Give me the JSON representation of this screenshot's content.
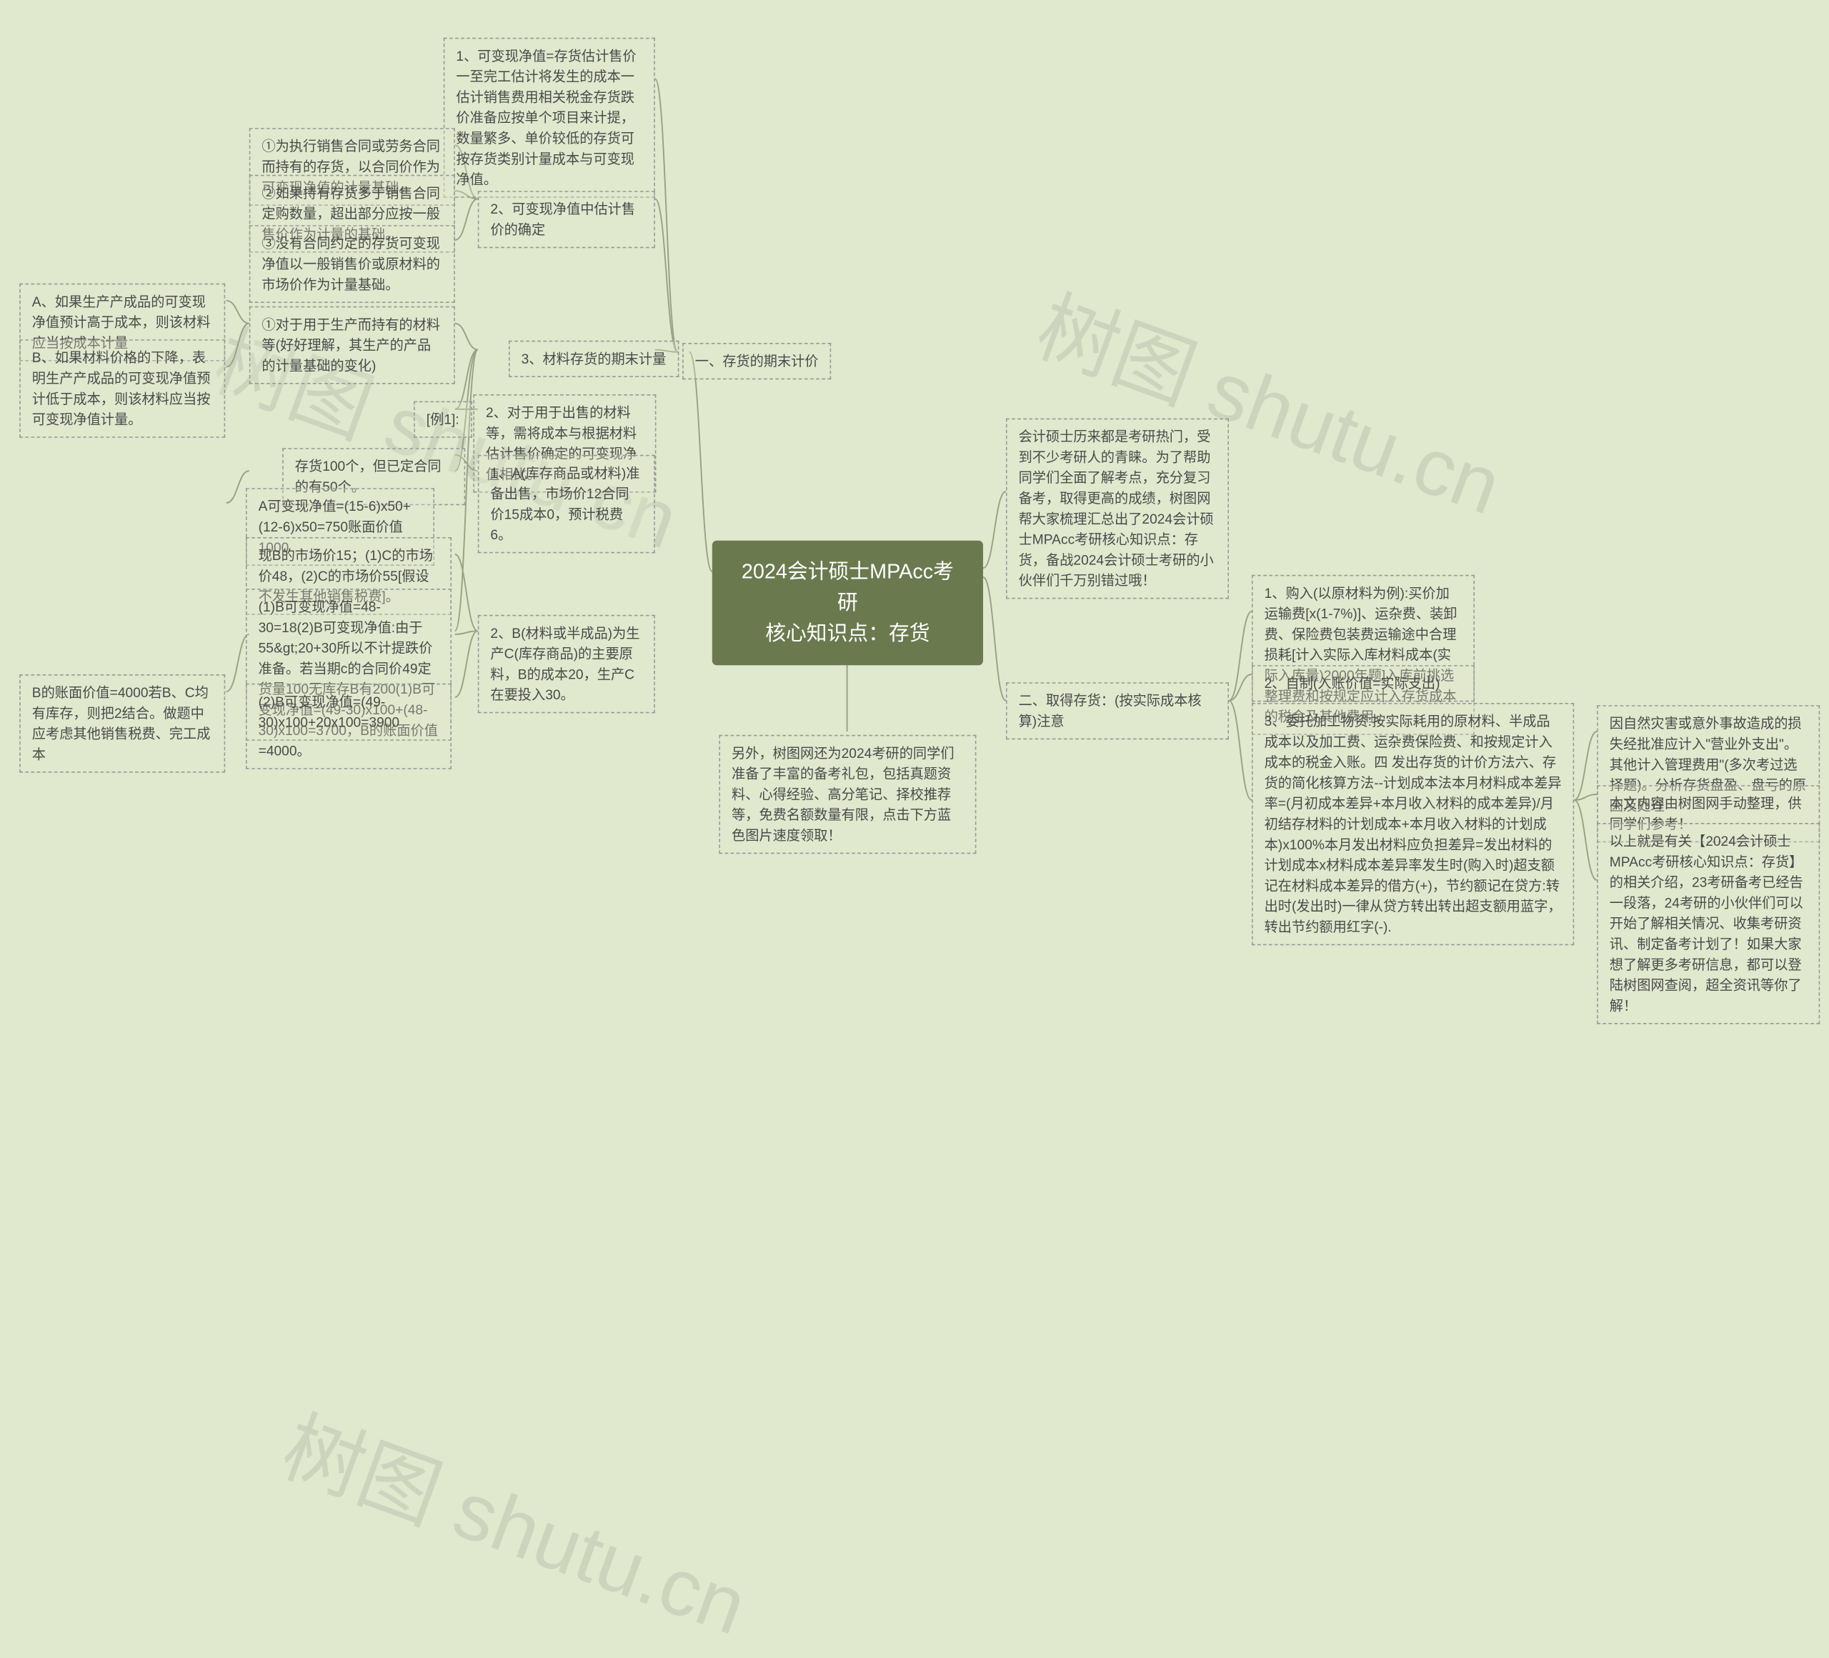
{
  "center": {
    "line1": "2024会计硕士MPAcc考研",
    "line2": "核心知识点：存货"
  },
  "right": {
    "intro": "会计硕士历来都是考研热门，受到不少考研人的青睐。为了帮助同学们全面了解考点，充分复习备考，取得更高的成绩，树图网帮大家梳理汇总出了2024会计硕士MPAcc考研核心知识点：存货，备战2024会计硕士考研的小伙伴们千万别错过哦！",
    "sec2title": "二、取得存货：(按实际成本核算)注意",
    "r1": "1、购入(以原材料为例):买价加运输费[x(1-7%)]、运杂费、装卸费、保险费包装费运输途中合理损耗[计入实际入库材料成本(实际入库量)2000年题]入库前挑选整理费和按规定应计入存货成本的税金及其他费用。",
    "r2": "2、自制(入账价值=实际支出)",
    "r3": "3、委托加工物资:按实际耗用的原材料、半成品成本以及加工费、运杂费保险费、和按规定计入成本的税金入账。四 发出存货的计价方法六、存货的简化核算方法--计划成本法本月材料成本差异率=(月初成本差异+本月收入材料的成本差异)/月初结存材料的计划成本+本月收入材料的计划成本)x100%本月发出材料应负担差异=发出材料的计划成本x材料成本差异率发生时(购入时)超支额记在材料成本差异的借方(+)，节约额记在贷方:转出时(发出时)一律从贷方转出转出超支额用蓝字，转出节约额用红字(-).",
    "r3a": "因自然灾害或意外事故造成的损失经批准应计入\"营业外支出\"。其他计入管理费用\"(多次考过选择题)。分析存货盘盈、盘亏的原因及处理",
    "r3b": "本文内容由树图网手动整理，供同学们参考！",
    "r3c": "以上就是有关【2024会计硕士MPAcc考研核心知识点：存货】的相关介绍，23考研备考已经告一段落，24考研的小伙伴们可以开始了解相关情况、收集考研资讯、制定备考计划了！如果大家想了解更多考研信息，都可以登陆树图网查阅，超全资讯等你了解！"
  },
  "left": {
    "sec1title": "一、存货的期末计价",
    "n1": "1、可变现净值=存货估计售价一至完工估计将发生的成本一估计销售费用相关税金存货跌价准备应按单个项目来计提，数量繁多、单价较低的存货可按存货类别计量成本与可变现净值。",
    "n2": "2、可变现净值中估计售价的确定",
    "n2a": "①为执行销售合同或劳务合同而持有的存货，以合同价作为可变现净值的计量基础。",
    "n2b": "②如果持有存货多于销售合同定购数量，超出部分应按一般售价作为计量的基础。",
    "n2c": "③没有合同约定的存货可变现净值以一般销售价或原材料的市场价作为计量基础。",
    "n3": "3、材料存货的期末计量",
    "n3a": "①对于用于生产而持有的材料等(好好理解，其生产的产品的计量基础的变化)",
    "n3a1": "A、如果生产产成品的可变现净值预计高于成本，则该材料应当按成本计量",
    "n3a2": "B、如果材料价格的下降，表明生产产成品的可变现净值预计低于成本，则该材料应当按可变现净值计量。",
    "n3b": "2、对于用于出售的材料等，需将成本与根据材料估计售价确定的可变现净值相比。",
    "n3b1": "[例1]:",
    "n3c": "1、A(库存商品或材料)准备出售，市场价12合同价15成本0，预计税费6。",
    "n3c1": "存货100个，但已定合同的有50个。",
    "n3c2": "A可变现净值=(15-6)x50+(12-6)x50=750账面价值1000",
    "n3d": "2、B(材料或半成品)为生产C(库存商品)的主要原料，B的成本20，生产C在要投入30。",
    "n3d1": "现B的市场价15；(1)C的市场价48，(2)C的市场价55[假设不发生其他销售税费]。",
    "n3d2": "(1)B可变现净值=48-30=18(2)B可变现净值:由于55&gt;20+30所以不计提跌价准备。若当期c的合同价49定货量100无库存B有200(1)B可变现净值=(49-30)x100+(48-30)x100=3700，B的账面价值=4000。",
    "n3d3": "(2)B可变现净值=(49-30)x100+20x100=3900",
    "n3d4": "B的账面价值=4000若B、C均有库存，则把2结合。做题中应考虑其他销售税费、完工成本",
    "footer": "另外，树图网还为2024考研的同学们准备了丰富的备考礼包，包括真题资料、心得经验、高分笔记、择校推荐等，免费名额数量有限，点击下方蓝色图片速度领取！"
  },
  "watermarks": [
    "树图 shutu.cn",
    "树图 shutu.cn",
    "树图 shutu.cn"
  ],
  "style": {
    "background": "#e0e8cd",
    "centerBg": "#6b7a4e",
    "centerColor": "#ffffff",
    "nodeBorder": "#999999",
    "nodeText": "#4a4a4a",
    "lineColor": "#9aa082",
    "nodeFontSize": 12,
    "centerFontSize": 18,
    "watermarkColor": "rgba(120,120,120,0.18)",
    "watermarkRotation": 20
  }
}
